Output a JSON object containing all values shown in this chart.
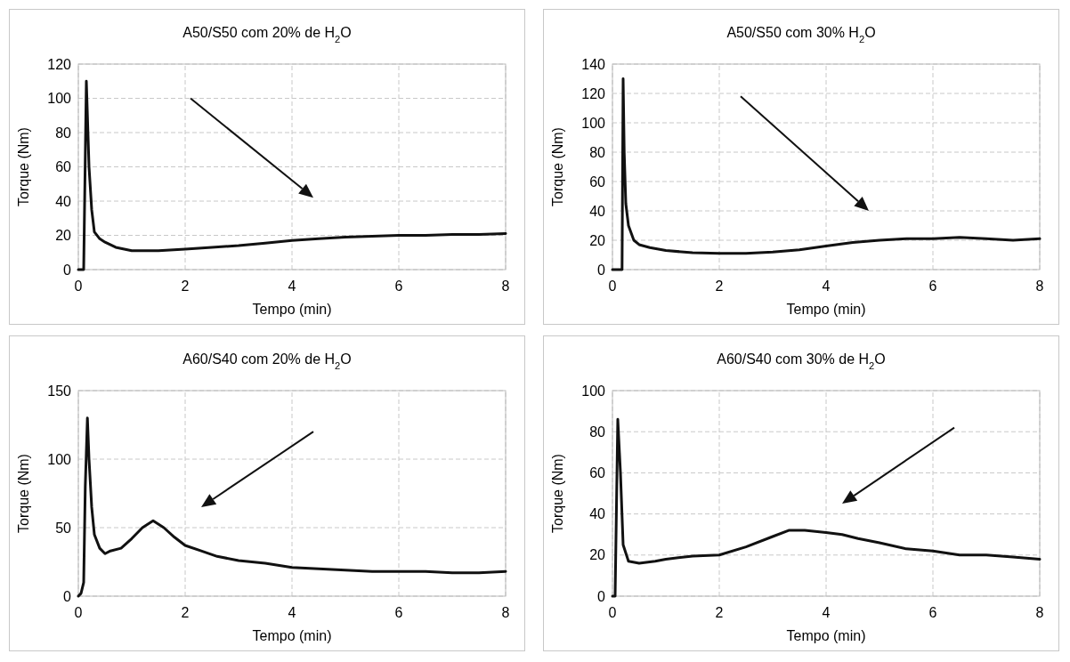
{
  "chart_data": [
    {
      "type": "line",
      "title": "A50/S50 com 20% de H$_{2}$O",
      "xlabel": "Tempo (min)",
      "ylabel": "Torque (Nm)",
      "xlim": [
        0,
        8
      ],
      "xticks": [
        0,
        2,
        4,
        6,
        8
      ],
      "ylim": [
        0,
        120
      ],
      "yticks": [
        0,
        20,
        40,
        60,
        80,
        100,
        120
      ],
      "grid": true,
      "line_style": "solid",
      "series": [
        {
          "color": "#111111",
          "x": [
            0,
            0.05,
            0.1,
            0.15,
            0.2,
            0.25,
            0.3,
            0.4,
            0.5,
            0.7,
            1.0,
            1.5,
            2,
            2.5,
            3,
            3.5,
            4,
            4.5,
            5,
            5.5,
            6,
            6.5,
            7,
            7.5,
            8
          ],
          "values": [
            0,
            0,
            0,
            110,
            60,
            35,
            22,
            18,
            16,
            13,
            11,
            11,
            12,
            13,
            14,
            15.5,
            17,
            18,
            19,
            19.5,
            20,
            20,
            20.5,
            20.5,
            21
          ]
        }
      ]
    },
    {
      "type": "line",
      "title": "A50/S50 com 30% H$_{2}$O",
      "xlabel": "Tempo (min)",
      "ylabel": "Torque (Nm)",
      "xlim": [
        0,
        8
      ],
      "xticks": [
        0,
        2,
        4,
        6,
        8
      ],
      "ylim": [
        0,
        140
      ],
      "yticks": [
        0,
        20,
        40,
        60,
        80,
        100,
        120,
        140
      ],
      "grid": true,
      "line_style": "solid",
      "series": [
        {
          "color": "#111111",
          "x": [
            0,
            0.15,
            0.18,
            0.2,
            0.22,
            0.25,
            0.3,
            0.4,
            0.5,
            0.7,
            1,
            1.5,
            2,
            2.5,
            3,
            3.5,
            4,
            4.5,
            5,
            5.5,
            6,
            6.5,
            7,
            7.5,
            8
          ],
          "values": [
            0,
            0,
            0,
            130,
            80,
            45,
            30,
            20,
            17,
            15,
            13,
            11.5,
            11,
            11,
            12,
            13.5,
            16,
            18.5,
            20,
            21,
            21,
            22,
            21,
            20,
            21
          ]
        }
      ]
    },
    {
      "type": "line",
      "title": "A60/S40 com 20% de H$_{2}$O",
      "xlabel": "Tempo (min)",
      "ylabel": "Torque (Nm)",
      "xlim": [
        0,
        8
      ],
      "xticks": [
        0,
        2,
        4,
        6,
        8
      ],
      "ylim": [
        0,
        150
      ],
      "yticks": [
        0,
        50,
        100,
        150
      ],
      "grid": true,
      "line_style": "solid",
      "series": [
        {
          "color": "#111111",
          "x": [
            0,
            0.05,
            0.1,
            0.13,
            0.17,
            0.2,
            0.25,
            0.3,
            0.4,
            0.5,
            0.6,
            0.8,
            1.0,
            1.2,
            1.4,
            1.6,
            1.8,
            2,
            2.3,
            2.6,
            3,
            3.5,
            4,
            4.5,
            5,
            5.5,
            6,
            6.5,
            7,
            7.5,
            8
          ],
          "values": [
            0,
            2,
            10,
            80,
            130,
            100,
            65,
            45,
            35,
            31,
            33,
            35,
            42,
            50,
            55,
            50,
            43,
            37,
            33,
            29,
            26,
            24,
            21,
            20,
            19,
            18,
            18,
            18,
            17,
            17,
            18
          ]
        }
      ]
    },
    {
      "type": "line",
      "title": "A60/S40 com 30% de H$_{2}$O",
      "xlabel": "Tempo (min)",
      "ylabel": "Torque (Nm)",
      "xlim": [
        0,
        8
      ],
      "xticks": [
        0,
        2,
        4,
        6,
        8
      ],
      "ylim": [
        0,
        100
      ],
      "yticks": [
        0,
        20,
        40,
        60,
        80,
        100
      ],
      "grid": true,
      "line_style": "solid",
      "series": [
        {
          "color": "#111111",
          "x": [
            0,
            0.05,
            0.1,
            0.15,
            0.2,
            0.3,
            0.5,
            0.8,
            1,
            1.5,
            2,
            2.5,
            3,
            3.3,
            3.6,
            4,
            4.3,
            4.6,
            5,
            5.5,
            6,
            6.5,
            7,
            7.5,
            8
          ],
          "values": [
            0,
            0,
            86,
            60,
            25,
            17,
            16,
            17,
            18,
            19.5,
            20,
            24,
            29,
            32,
            32,
            31,
            30,
            28,
            26,
            23,
            22,
            20,
            20,
            19,
            18
          ]
        }
      ]
    }
  ]
}
